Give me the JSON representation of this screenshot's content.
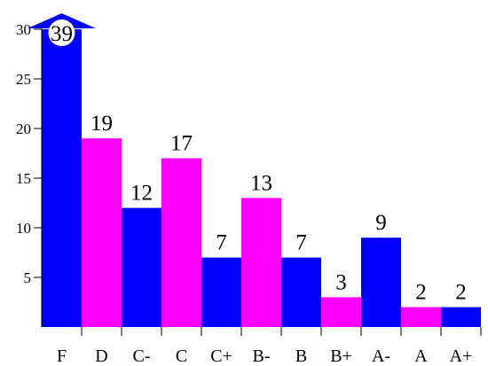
{
  "chart_data": {
    "type": "bar",
    "title": "",
    "xlabel": "",
    "ylabel": "",
    "categories": [
      "F",
      "D",
      "C-",
      "C",
      "C+",
      "B-",
      "B",
      "B+",
      "A-",
      "A",
      "A+"
    ],
    "values": [
      39,
      19,
      12,
      17,
      7,
      13,
      7,
      3,
      9,
      2,
      2
    ],
    "value_labels": [
      "39",
      "19",
      "12",
      "17",
      "7",
      "13",
      "7",
      "3",
      "9",
      "2",
      "2"
    ],
    "yticks": [
      5,
      10,
      15,
      20,
      25,
      30
    ],
    "ylim": [
      0,
      30
    ],
    "grid": false,
    "legend": "none",
    "clipped_bars": [
      0
    ],
    "colors": [
      "#0000ff",
      "#ff00ff"
    ]
  }
}
